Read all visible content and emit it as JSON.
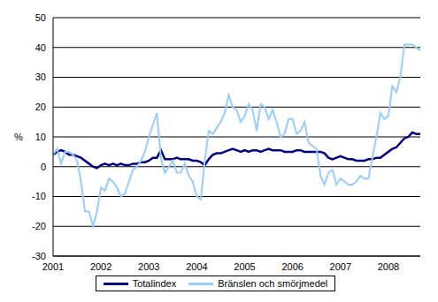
{
  "chart_data": {
    "type": "line",
    "y_label": "%",
    "categories": [
      "2001",
      null,
      null,
      null,
      null,
      null,
      null,
      null,
      null,
      null,
      null,
      null,
      "2002",
      null,
      null,
      null,
      null,
      null,
      null,
      null,
      null,
      null,
      null,
      null,
      "2003",
      null,
      null,
      null,
      null,
      null,
      null,
      null,
      null,
      null,
      null,
      null,
      "2004",
      null,
      null,
      null,
      null,
      null,
      null,
      null,
      null,
      null,
      null,
      null,
      "2005",
      null,
      null,
      null,
      null,
      null,
      null,
      null,
      null,
      null,
      null,
      null,
      "2006",
      null,
      null,
      null,
      null,
      null,
      null,
      null,
      null,
      null,
      null,
      null,
      "2007",
      null,
      null,
      null,
      null,
      null,
      null,
      null,
      null,
      null,
      null,
      null,
      "2008",
      null,
      null,
      null,
      null,
      null,
      null,
      null,
      null
    ],
    "series": [
      {
        "name": "Totalindex",
        "color": "#000080",
        "values": [
          4,
          5,
          5.5,
          5,
          4,
          4,
          3.5,
          3,
          2,
          1,
          0,
          -0.5,
          0.5,
          1,
          0.5,
          1,
          0.5,
          1,
          0.5,
          0.5,
          1,
          1,
          1.5,
          1.5,
          2,
          3,
          3,
          5.5,
          2.5,
          2.5,
          2.5,
          3,
          2.5,
          2.5,
          2.5,
          2,
          2,
          1.5,
          0.5,
          2.5,
          4,
          4.5,
          4.5,
          5,
          5.5,
          6,
          5.5,
          5,
          5.5,
          5,
          5.5,
          5.5,
          5,
          5.5,
          6,
          5.5,
          5.5,
          5.5,
          5,
          5,
          5,
          5.5,
          5.5,
          5,
          5,
          5,
          5,
          5,
          4.5,
          3,
          2.5,
          3,
          3.5,
          3,
          2.5,
          2.5,
          2,
          2,
          2,
          2.5,
          2.5,
          3,
          3,
          4,
          5,
          6,
          6.5,
          8,
          9.5,
          10,
          11.5,
          11,
          11
        ]
      },
      {
        "name": "Bränslen och smörjmedel",
        "color": "#99ccff",
        "values": [
          4,
          6,
          1,
          5,
          5,
          4,
          2,
          -5,
          -15,
          -15,
          -20,
          -15,
          -7,
          -8,
          -4,
          -5,
          -7,
          -10,
          -9,
          -5,
          -1,
          0,
          2,
          5,
          10,
          14,
          18,
          3,
          -2,
          0,
          2,
          -2,
          -2,
          1,
          -3,
          -5,
          -10,
          -11,
          2,
          12,
          11,
          13,
          15,
          18,
          24,
          20,
          19,
          15,
          17,
          21,
          19,
          12,
          21,
          20,
          16,
          19,
          15,
          10,
          11,
          16,
          16,
          11,
          12,
          15,
          8,
          7,
          6,
          -3,
          -6,
          -2,
          -1,
          -6,
          -4,
          -5,
          -6,
          -6,
          -5,
          -3,
          -4,
          -4,
          3,
          10,
          18,
          16,
          17,
          27,
          25,
          30,
          41,
          41,
          41,
          40,
          39
        ]
      }
    ],
    "ylim": [
      -30,
      50
    ],
    "yticks": [
      -30,
      -20,
      -10,
      0,
      10,
      20,
      30,
      40,
      50
    ],
    "grid": true,
    "legend": "bottom"
  }
}
